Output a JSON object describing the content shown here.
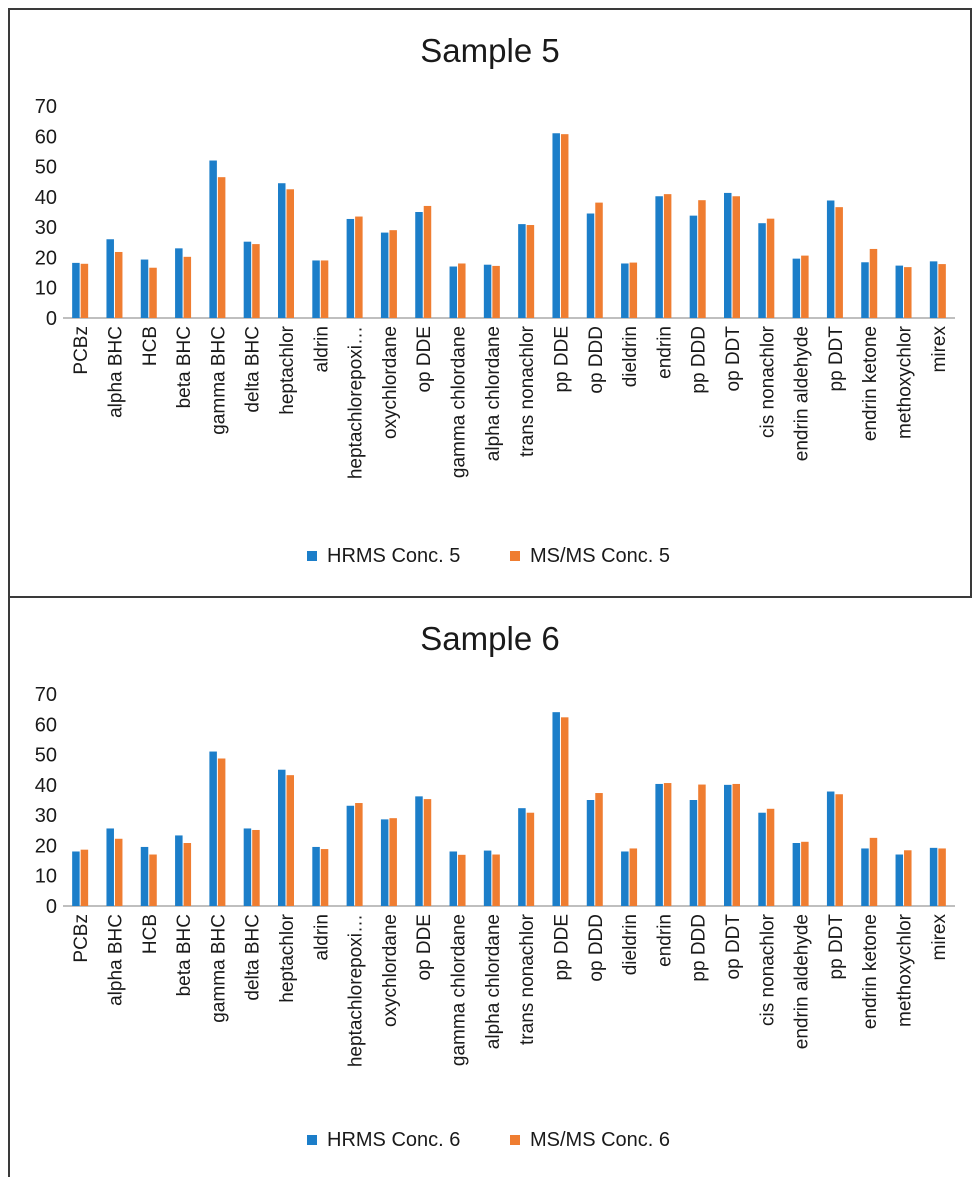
{
  "colors": {
    "hrms": "#1c7ec9",
    "msms": "#ef7d31",
    "axis": "#7f7f7f"
  },
  "chart_data": [
    {
      "type": "bar",
      "title": "Sample 5",
      "ylim": [
        0,
        70
      ],
      "yticks": [
        "0",
        "10",
        "20",
        "30",
        "40",
        "50",
        "60",
        "70"
      ],
      "legend_position": "bottom",
      "categories": [
        "PCBz",
        "alpha BHC",
        "HCB",
        "beta BHC",
        "gamma BHC",
        "delta BHC",
        "heptachlor",
        "aldrin",
        "heptachlorepoxi…",
        "oxychlordane",
        "op DDE",
        "gamma chlordane",
        "alpha chlordane",
        "trans nonachlor",
        "pp DDE",
        "op DDD",
        "dieldrin",
        "endrin",
        "pp DDD",
        "op DDT",
        "cis nonachlor",
        "endrin aldehyde",
        "pp DDT",
        "endrin ketone",
        "methoxychlor",
        "mirex"
      ],
      "series": [
        {
          "name": "HRMS Conc. 5",
          "values": [
            18.2,
            26,
            19.3,
            23,
            52,
            25.2,
            44.5,
            19,
            32.7,
            28.2,
            35,
            17,
            17.6,
            31,
            61,
            34.5,
            18,
            40.2,
            33.8,
            41.3,
            31.3,
            19.6,
            38.8,
            18.4,
            17.3,
            18.7
          ]
        },
        {
          "name": "MS/MS Conc. 5",
          "values": [
            17.9,
            21.8,
            16.6,
            20.2,
            46.5,
            24.4,
            42.5,
            19,
            33.5,
            29,
            37,
            18,
            17.2,
            30.7,
            60.7,
            38.1,
            18.3,
            40.9,
            38.9,
            40.2,
            32.8,
            20.6,
            36.6,
            22.8,
            16.8,
            17.8
          ]
        }
      ]
    },
    {
      "type": "bar",
      "title": "Sample 6",
      "ylim": [
        0,
        70
      ],
      "yticks": [
        "0",
        "10",
        "20",
        "30",
        "40",
        "50",
        "60",
        "70"
      ],
      "legend_position": "bottom",
      "categories": [
        "PCBz",
        "alpha BHC",
        "HCB",
        "beta BHC",
        "gamma BHC",
        "delta BHC",
        "heptachlor",
        "aldrin",
        "heptachlorepoxi…",
        "oxychlordane",
        "op DDE",
        "gamma chlordane",
        "alpha chlordane",
        "trans nonachlor",
        "pp DDE",
        "op DDD",
        "dieldrin",
        "endrin",
        "pp DDD",
        "op DDT",
        "cis nonachlor",
        "endrin aldehyde",
        "pp DDT",
        "endrin ketone",
        "methoxychlor",
        "mirex"
      ],
      "series": [
        {
          "name": "HRMS Conc. 6",
          "values": [
            18,
            25.6,
            19.5,
            23.3,
            51,
            25.6,
            45,
            19.5,
            33.1,
            28.6,
            36.2,
            18,
            18.3,
            32.3,
            64,
            35,
            18,
            40.3,
            35,
            40,
            30.8,
            20.8,
            37.8,
            19,
            17,
            19.2
          ]
        },
        {
          "name": "MS/MS Conc. 6",
          "values": [
            18.6,
            22.2,
            17,
            20.8,
            48.7,
            25.1,
            43.2,
            18.8,
            34,
            29,
            35.3,
            16.9,
            17,
            30.8,
            62.3,
            37.3,
            19,
            40.6,
            40.1,
            40.3,
            32.1,
            21.2,
            36.9,
            22.5,
            18.4,
            19
          ]
        }
      ]
    }
  ]
}
